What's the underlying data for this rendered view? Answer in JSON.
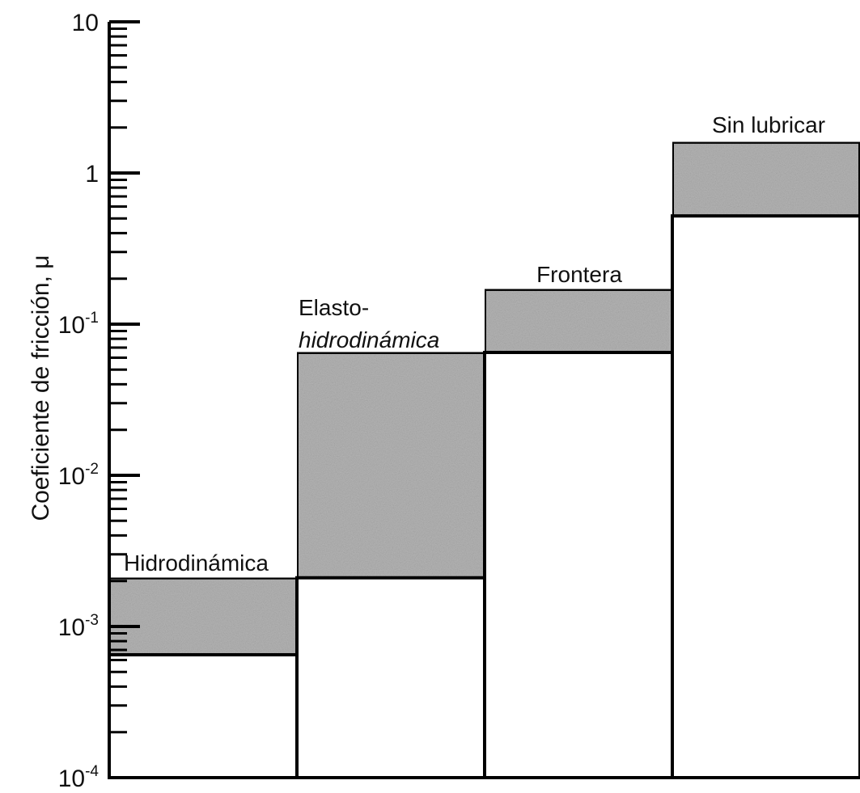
{
  "chart_data": {
    "type": "bar",
    "subtype": "floating-range",
    "y_scale": "log",
    "ylabel": "Coeficiente de fricción, μ",
    "xlabel": "",
    "ylim": [
      0.0001,
      10
    ],
    "y_tick_labels": [
      {
        "value": 0.0001,
        "base": "10",
        "exp": "-4"
      },
      {
        "value": 0.001,
        "base": "10",
        "exp": "-3"
      },
      {
        "value": 0.01,
        "base": "10",
        "exp": "-2"
      },
      {
        "value": 0.1,
        "base": "10",
        "exp": "-1"
      },
      {
        "value": 1,
        "base": "1",
        "exp": ""
      },
      {
        "value": 10,
        "base": "10",
        "exp": ""
      }
    ],
    "categories": [
      {
        "label_lines": [
          "Hidrodinámica"
        ],
        "low": 0.00065,
        "high": 0.0021
      },
      {
        "label_lines": [
          "Elasto-",
          "hidrodinámica"
        ],
        "low": 0.0021,
        "high": 0.065
      },
      {
        "label_lines": [
          "Frontera"
        ],
        "low": 0.065,
        "high": 0.17
      },
      {
        "label_lines": [
          "Sin lubricar"
        ],
        "low": 0.52,
        "high": 1.6
      }
    ],
    "fill_color": "#b4b4b4",
    "bar_outline_color": "#000000",
    "grid": false,
    "legend": "none"
  }
}
